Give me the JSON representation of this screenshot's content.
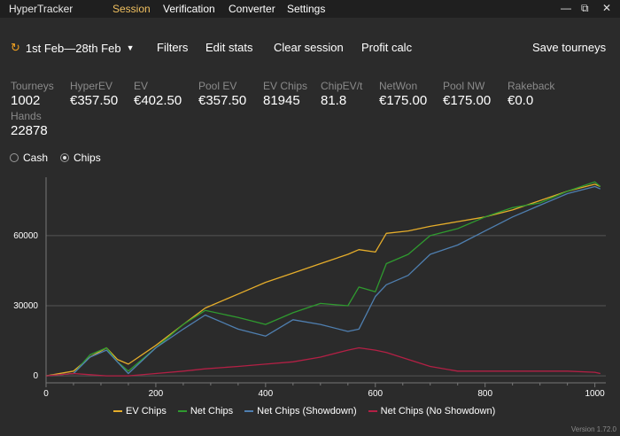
{
  "app": {
    "title": "HyperTracker",
    "nav_tabs": [
      "Session",
      "Verification",
      "Converter",
      "Settings"
    ],
    "active_tab": "Session",
    "window_controls": {
      "minimize": "—",
      "restore": "⧉",
      "close": "✕"
    }
  },
  "toolbar": {
    "date_range": "1st Feb—28th Feb",
    "filters": "Filters",
    "edit_stats": "Edit stats",
    "clear_session": "Clear session",
    "profit_calc": "Profit calc",
    "save_tourneys": "Save tourneys"
  },
  "stats": [
    {
      "label": "Tourneys",
      "value": "1002"
    },
    {
      "label": "HyperEV",
      "value": "€357.50"
    },
    {
      "label": "EV",
      "value": "€402.50"
    },
    {
      "label": "Pool EV",
      "value": "€357.50"
    },
    {
      "label": "EV Chips",
      "value": "81945"
    },
    {
      "label": "ChipEV/t",
      "value": "81.8"
    },
    {
      "label": "NetWon",
      "value": "€175.00"
    },
    {
      "label": "Pool NW",
      "value": "€175.00"
    },
    {
      "label": "Rakeback",
      "value": "€0.0"
    },
    {
      "label": "Hands",
      "value": "22878"
    }
  ],
  "view_mode": {
    "options": [
      "Cash",
      "Chips"
    ],
    "selected": "Chips"
  },
  "chart_data": {
    "type": "line",
    "xlim": [
      0,
      1020
    ],
    "ylim": [
      -3000,
      85000
    ],
    "x_ticks": [
      "0",
      "200",
      "400",
      "600",
      "800",
      "1000"
    ],
    "y_ticks": [
      "0",
      "30000",
      "60000"
    ],
    "grid": true,
    "legend_position": "bottom",
    "x": [
      0,
      50,
      80,
      110,
      130,
      150,
      200,
      250,
      290,
      350,
      400,
      450,
      500,
      550,
      570,
      600,
      620,
      660,
      700,
      750,
      800,
      850,
      900,
      950,
      1000,
      1010
    ],
    "series": [
      {
        "name": "EV Chips",
        "color": "#e5ad2b",
        "values": [
          0,
          2000,
          8000,
          12000,
          7000,
          5000,
          13000,
          22000,
          29000,
          35000,
          40000,
          44000,
          48000,
          52000,
          54000,
          53000,
          61000,
          62000,
          64000,
          66000,
          68000,
          71000,
          75000,
          79000,
          82000,
          81000
        ]
      },
      {
        "name": "Net Chips",
        "color": "#2f9a2f",
        "values": [
          0,
          1000,
          9000,
          12000,
          6000,
          2000,
          12000,
          22000,
          28000,
          25000,
          22000,
          27000,
          31000,
          30000,
          38000,
          36000,
          48000,
          52000,
          60000,
          63000,
          68000,
          72000,
          74000,
          79000,
          83000,
          81000
        ]
      },
      {
        "name": "Net Chips (Showdown)",
        "color": "#4f7fb0",
        "values": [
          0,
          1000,
          8000,
          11000,
          6000,
          1000,
          12000,
          20000,
          26000,
          20000,
          17000,
          24000,
          22000,
          19000,
          20000,
          34000,
          39000,
          43000,
          52000,
          56000,
          62000,
          68000,
          73000,
          78000,
          81000,
          80000
        ]
      },
      {
        "name": "Net Chips (No Showdown)",
        "color": "#b32045",
        "values": [
          0,
          1000,
          500,
          0,
          0,
          0,
          1000,
          2000,
          3000,
          4000,
          5000,
          6000,
          8000,
          11000,
          12000,
          11000,
          10000,
          7000,
          4000,
          2000,
          2000,
          2000,
          2000,
          2000,
          1500,
          1000
        ]
      }
    ]
  },
  "version": "Version 1.72.0"
}
